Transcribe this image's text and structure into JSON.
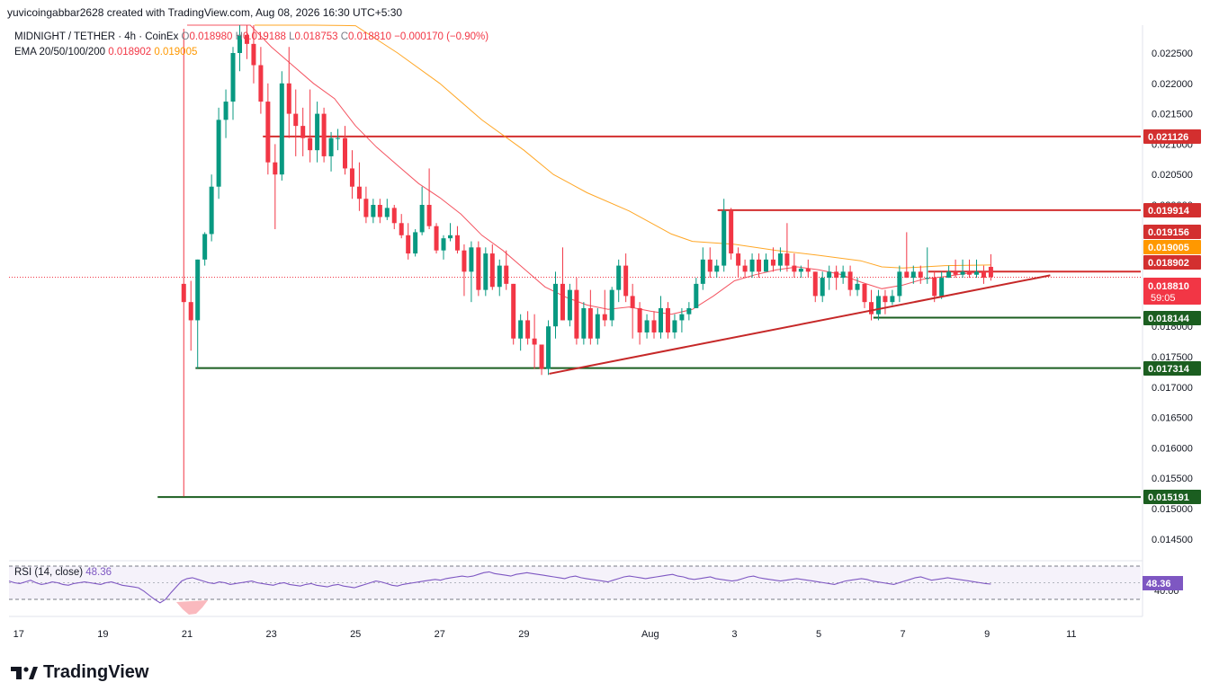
{
  "header": {
    "user": "yuvicoingabbar2628",
    "created_text": "created with TradingView.com, Aug 08, 2026 16:30 UTC+5:30"
  },
  "legend": {
    "symbol": "MIDNIGHT / TETHER · 4h · CoinEx",
    "ohlc": {
      "o_label": "O",
      "o": "0.018980",
      "h_label": "H",
      "h": "0.019188",
      "l_label": "L",
      "l": "0.018753",
      "c_label": "C",
      "c": "0.018810",
      "change": "−0.000170 (−0.90%)"
    },
    "ema_label": "EMA 20/50/100/200",
    "ema20": "0.018902",
    "ema50": "0.019005"
  },
  "rsi_legend": {
    "label": "RSI (14, close)",
    "value": "48.36"
  },
  "brand": {
    "name": "TradingView"
  },
  "colors": {
    "up": "#089981",
    "down": "#f23645",
    "ema20": "#f23645",
    "ema50": "#ff9800",
    "rsi": "#7e57c2",
    "support": "#1b5e20",
    "resistance": "#d32f2f",
    "trendline": "#c62828"
  },
  "chart_data": {
    "type": "candlestick",
    "timeframe": "4h",
    "price_axis": {
      "ticks": [
        "0.022500",
        "0.022000",
        "0.021500",
        "0.021000",
        "0.020500",
        "0.020000",
        "0.019500",
        "0.019000",
        "0.018500",
        "0.018000",
        "0.017500",
        "0.017000",
        "0.016500",
        "0.016000",
        "0.015500",
        "0.015000",
        "0.014500"
      ],
      "range": [
        0.0142,
        0.0234
      ]
    },
    "time_axis": {
      "ticks": [
        {
          "label": "17",
          "day": 17
        },
        {
          "label": "19",
          "day": 19
        },
        {
          "label": "21",
          "day": 21
        },
        {
          "label": "23",
          "day": 23
        },
        {
          "label": "25",
          "day": 25
        },
        {
          "label": "27",
          "day": 27
        },
        {
          "label": "29",
          "day": 29
        },
        {
          "label": "Aug",
          "day": 32
        },
        {
          "label": "3",
          "day": 34
        },
        {
          "label": "5",
          "day": 36
        },
        {
          "label": "7",
          "day": 38
        },
        {
          "label": "9",
          "day": 40
        },
        {
          "label": "11",
          "day": 42
        }
      ]
    },
    "price_labels": [
      {
        "value": "0.021126",
        "style": "resistance"
      },
      {
        "value": "0.019914",
        "style": "resistance"
      },
      {
        "value": "0.019156",
        "style": "resistance"
      },
      {
        "value": "0.019005",
        "style": "ema50"
      },
      {
        "value": "0.018902",
        "style": "resistance"
      },
      {
        "value": "0.018810",
        "style": "last",
        "countdown": "59:05"
      },
      {
        "value": "0.018144",
        "style": "support"
      },
      {
        "value": "0.017314",
        "style": "support"
      },
      {
        "value": "0.015191",
        "style": "support"
      }
    ],
    "horizontal_levels": [
      {
        "price": 0.021126,
        "from_day": 22.8,
        "kind": "resistance"
      },
      {
        "price": 0.019914,
        "from_day": 33.6,
        "kind": "resistance"
      },
      {
        "price": 0.018902,
        "from_day": 38.6,
        "kind": "resistance"
      },
      {
        "price": 0.018144,
        "from_day": 37.3,
        "kind": "support"
      },
      {
        "price": 0.017314,
        "from_day": 21.2,
        "kind": "support"
      },
      {
        "price": 0.015191,
        "from_day": 20.3,
        "kind": "support"
      }
    ],
    "trendline": {
      "from": {
        "day": 29.6,
        "price": 0.01722
      },
      "to": {
        "day": 41.5,
        "price": 0.01884
      }
    },
    "candles": [
      [
        20.92,
        0.0187,
        0.0229,
        0.0152,
        0.0184
      ],
      [
        21.09,
        0.0184,
        0.01875,
        0.0176,
        0.0181
      ],
      [
        21.25,
        0.0181,
        0.0191,
        0.01731,
        0.0191
      ],
      [
        21.42,
        0.0191,
        0.01955,
        0.019,
        0.01952
      ],
      [
        21.58,
        0.01952,
        0.0205,
        0.0194,
        0.0203
      ],
      [
        21.75,
        0.0203,
        0.0216,
        0.0201,
        0.0214
      ],
      [
        21.92,
        0.0214,
        0.0219,
        0.0211,
        0.0217
      ],
      [
        22.09,
        0.0217,
        0.0226,
        0.0214,
        0.0225
      ],
      [
        22.25,
        0.0225,
        0.0234,
        0.0222,
        0.0228
      ],
      [
        22.42,
        0.0228,
        0.0232,
        0.0224,
        0.02265
      ],
      [
        22.58,
        0.02265,
        0.0231,
        0.022,
        0.0223
      ],
      [
        22.75,
        0.0223,
        0.0226,
        0.0215,
        0.0217
      ],
      [
        22.92,
        0.0217,
        0.022,
        0.0205,
        0.0207
      ],
      [
        23.09,
        0.0207,
        0.021,
        0.0196,
        0.0205
      ],
      [
        23.25,
        0.0205,
        0.0222,
        0.0204,
        0.022
      ],
      [
        23.42,
        0.022,
        0.0226,
        0.0211,
        0.0215
      ],
      [
        23.58,
        0.0215,
        0.0219,
        0.0208,
        0.0213
      ],
      [
        23.75,
        0.0213,
        0.0216,
        0.0208,
        0.0211
      ],
      [
        23.92,
        0.0211,
        0.0219,
        0.0207,
        0.0209
      ],
      [
        24.09,
        0.0209,
        0.0217,
        0.0207,
        0.0215
      ],
      [
        24.25,
        0.0215,
        0.0216,
        0.0207,
        0.0208
      ],
      [
        24.42,
        0.0208,
        0.0212,
        0.02055,
        0.0211
      ],
      [
        24.58,
        0.0211,
        0.02125,
        0.0209,
        0.0211
      ],
      [
        24.75,
        0.0211,
        0.0213,
        0.0205,
        0.0206
      ],
      [
        24.92,
        0.0206,
        0.0209,
        0.0201,
        0.0203
      ],
      [
        25.09,
        0.0203,
        0.0207,
        0.0199,
        0.0201
      ],
      [
        25.25,
        0.0201,
        0.0203,
        0.0197,
        0.0198
      ],
      [
        25.42,
        0.0198,
        0.0201,
        0.0197,
        0.02
      ],
      [
        25.58,
        0.02,
        0.0201,
        0.0197,
        0.0198
      ],
      [
        25.75,
        0.0198,
        0.0201,
        0.01975,
        0.01995
      ],
      [
        25.92,
        0.01995,
        0.02,
        0.0196,
        0.0197
      ],
      [
        26.09,
        0.0197,
        0.01985,
        0.01945,
        0.0195
      ],
      [
        26.25,
        0.0195,
        0.0197,
        0.0191,
        0.0192
      ],
      [
        26.42,
        0.0192,
        0.0196,
        0.01915,
        0.01955
      ],
      [
        26.58,
        0.01955,
        0.0203,
        0.0195,
        0.02
      ],
      [
        26.75,
        0.02,
        0.0206,
        0.0196,
        0.01965
      ],
      [
        26.92,
        0.01965,
        0.0197,
        0.0192,
        0.01925
      ],
      [
        27.09,
        0.01925,
        0.0195,
        0.0191,
        0.01945
      ],
      [
        27.25,
        0.01945,
        0.0197,
        0.0194,
        0.0195
      ],
      [
        27.42,
        0.0195,
        0.01965,
        0.0192,
        0.01925
      ],
      [
        27.58,
        0.01925,
        0.01935,
        0.0185,
        0.0189
      ],
      [
        27.75,
        0.0189,
        0.0194,
        0.0184,
        0.0193
      ],
      [
        27.92,
        0.0193,
        0.0194,
        0.0185,
        0.0186
      ],
      [
        28.09,
        0.0186,
        0.0193,
        0.0185,
        0.0192
      ],
      [
        28.25,
        0.0192,
        0.01935,
        0.0186,
        0.01865
      ],
      [
        28.42,
        0.01865,
        0.0191,
        0.0185,
        0.019
      ],
      [
        28.58,
        0.019,
        0.01925,
        0.0186,
        0.0187
      ],
      [
        28.75,
        0.0187,
        0.0187,
        0.0177,
        0.0178
      ],
      [
        28.92,
        0.0178,
        0.0182,
        0.0176,
        0.0181
      ],
      [
        29.09,
        0.0181,
        0.01825,
        0.0177,
        0.0178
      ],
      [
        29.25,
        0.0178,
        0.0182,
        0.0173,
        0.0177
      ],
      [
        29.42,
        0.0177,
        0.0177,
        0.0172,
        0.0173
      ],
      [
        29.58,
        0.0173,
        0.0181,
        0.0172,
        0.018
      ],
      [
        29.75,
        0.018,
        0.0189,
        0.0178,
        0.0187
      ],
      [
        29.92,
        0.0187,
        0.0193,
        0.0181,
        0.0181
      ],
      [
        30.09,
        0.0181,
        0.0187,
        0.018,
        0.0186
      ],
      [
        30.25,
        0.0186,
        0.0188,
        0.0177,
        0.0178
      ],
      [
        30.42,
        0.0178,
        0.0184,
        0.0177,
        0.0183
      ],
      [
        30.58,
        0.0183,
        0.0186,
        0.0177,
        0.0178
      ],
      [
        30.75,
        0.0178,
        0.0183,
        0.0177,
        0.0182
      ],
      [
        30.92,
        0.0182,
        0.0186,
        0.018,
        0.0181
      ],
      [
        31.09,
        0.0181,
        0.01865,
        0.018,
        0.0186
      ],
      [
        31.25,
        0.0186,
        0.0191,
        0.0184,
        0.019
      ],
      [
        31.42,
        0.019,
        0.0192,
        0.0184,
        0.0185
      ],
      [
        31.58,
        0.0185,
        0.0187,
        0.0178,
        0.0183
      ],
      [
        31.75,
        0.0183,
        0.0184,
        0.0177,
        0.0179
      ],
      [
        31.92,
        0.0179,
        0.0182,
        0.0178,
        0.0181
      ],
      [
        32.09,
        0.0181,
        0.01825,
        0.0178,
        0.0179
      ],
      [
        32.25,
        0.0179,
        0.0185,
        0.0178,
        0.0183
      ],
      [
        32.42,
        0.0183,
        0.0184,
        0.0178,
        0.0179
      ],
      [
        32.58,
        0.0179,
        0.0182,
        0.0178,
        0.0181
      ],
      [
        32.75,
        0.0181,
        0.0183,
        0.0179,
        0.0182
      ],
      [
        32.92,
        0.0182,
        0.0184,
        0.0181,
        0.0183
      ],
      [
        33.09,
        0.0183,
        0.0188,
        0.0183,
        0.0187
      ],
      [
        33.25,
        0.0187,
        0.0193,
        0.0186,
        0.0191
      ],
      [
        33.42,
        0.0191,
        0.0193,
        0.0188,
        0.0189
      ],
      [
        33.58,
        0.0189,
        0.0191,
        0.0188,
        0.019
      ],
      [
        33.75,
        0.019,
        0.0201,
        0.0189,
        0.0199
      ],
      [
        33.92,
        0.0199,
        0.01995,
        0.0191,
        0.0192
      ],
      [
        34.09,
        0.0192,
        0.0193,
        0.0188,
        0.019
      ],
      [
        34.25,
        0.019,
        0.0191,
        0.0188,
        0.0189
      ],
      [
        34.42,
        0.0189,
        0.0192,
        0.0188,
        0.0191
      ],
      [
        34.58,
        0.0191,
        0.0192,
        0.0188,
        0.0189
      ],
      [
        34.75,
        0.0189,
        0.0192,
        0.0189,
        0.0191
      ],
      [
        34.92,
        0.0191,
        0.0193,
        0.0189,
        0.019
      ],
      [
        35.09,
        0.019,
        0.0193,
        0.0189,
        0.0192
      ],
      [
        35.25,
        0.0192,
        0.0197,
        0.0189,
        0.019
      ],
      [
        35.42,
        0.019,
        0.0192,
        0.0188,
        0.0189
      ],
      [
        35.58,
        0.0189,
        0.019,
        0.0188,
        0.01895
      ],
      [
        35.75,
        0.01895,
        0.0191,
        0.0188,
        0.0189
      ],
      [
        35.92,
        0.0189,
        0.0189,
        0.0184,
        0.0185
      ],
      [
        36.09,
        0.0185,
        0.0189,
        0.0184,
        0.0188
      ],
      [
        36.25,
        0.0188,
        0.019,
        0.0186,
        0.0189
      ],
      [
        36.42,
        0.0189,
        0.019,
        0.0186,
        0.0188
      ],
      [
        36.58,
        0.0188,
        0.019,
        0.0187,
        0.0189
      ],
      [
        36.75,
        0.0189,
        0.019,
        0.0185,
        0.0186
      ],
      [
        36.92,
        0.0186,
        0.0188,
        0.0185,
        0.0187
      ],
      [
        37.09,
        0.0187,
        0.0187,
        0.0183,
        0.0184
      ],
      [
        37.25,
        0.0184,
        0.0186,
        0.0181,
        0.0182
      ],
      [
        37.42,
        0.0182,
        0.0186,
        0.0181,
        0.0185
      ],
      [
        37.58,
        0.0185,
        0.0186,
        0.0182,
        0.0184
      ],
      [
        37.75,
        0.0184,
        0.0186,
        0.01835,
        0.0185
      ],
      [
        37.92,
        0.0185,
        0.019,
        0.0184,
        0.0189
      ],
      [
        38.09,
        0.0189,
        0.01955,
        0.0188,
        0.0188
      ],
      [
        38.25,
        0.0188,
        0.019,
        0.0187,
        0.0189
      ],
      [
        38.42,
        0.0189,
        0.019,
        0.0187,
        0.0188
      ],
      [
        38.58,
        0.0188,
        0.0193,
        0.0187,
        0.0188
      ],
      [
        38.75,
        0.0188,
        0.0189,
        0.0184,
        0.0185
      ],
      [
        38.92,
        0.0185,
        0.0189,
        0.01845,
        0.0188
      ],
      [
        39.09,
        0.0188,
        0.019,
        0.0188,
        0.0189
      ],
      [
        39.25,
        0.0189,
        0.0191,
        0.0188,
        0.01885
      ],
      [
        39.42,
        0.01885,
        0.0191,
        0.0188,
        0.0189
      ],
      [
        39.58,
        0.0189,
        0.0191,
        0.0188,
        0.01885
      ],
      [
        39.75,
        0.01885,
        0.0191,
        0.0188,
        0.0189
      ],
      [
        39.92,
        0.0189,
        0.019,
        0.0187,
        0.0188
      ],
      [
        40.09,
        0.01898,
        0.019188,
        0.018753,
        0.01881
      ]
    ],
    "ema20": [
      [
        21.0,
        0.0231
      ],
      [
        21.5,
        0.0238
      ],
      [
        22.0,
        0.0238
      ],
      [
        22.5,
        0.023
      ],
      [
        23.0,
        0.0226
      ],
      [
        23.5,
        0.0223
      ],
      [
        24.0,
        0.022
      ],
      [
        24.5,
        0.02175
      ],
      [
        25.0,
        0.0213
      ],
      [
        25.5,
        0.02095
      ],
      [
        26.0,
        0.02065
      ],
      [
        26.5,
        0.02035
      ],
      [
        27.0,
        0.02012
      ],
      [
        27.5,
        0.01985
      ],
      [
        28.0,
        0.0195
      ],
      [
        28.5,
        0.01925
      ],
      [
        29.0,
        0.01895
      ],
      [
        29.5,
        0.01865
      ],
      [
        30.0,
        0.01848
      ],
      [
        30.5,
        0.01835
      ],
      [
        31.0,
        0.01828
      ],
      [
        31.5,
        0.01832
      ],
      [
        32.0,
        0.01825
      ],
      [
        32.5,
        0.0182
      ],
      [
        33.0,
        0.01828
      ],
      [
        33.5,
        0.0185
      ],
      [
        34.0,
        0.01875
      ],
      [
        34.5,
        0.01885
      ],
      [
        35.0,
        0.01893
      ],
      [
        35.5,
        0.01898
      ],
      [
        36.0,
        0.01893
      ],
      [
        36.5,
        0.01886
      ],
      [
        37.0,
        0.01873
      ],
      [
        37.5,
        0.01862
      ],
      [
        38.0,
        0.01868
      ],
      [
        38.5,
        0.01878
      ],
      [
        39.0,
        0.01882
      ],
      [
        39.5,
        0.01887
      ],
      [
        40.09,
        0.0189
      ]
    ],
    "ema50": [
      [
        22.6,
        0.0236
      ],
      [
        23.0,
        0.0235
      ],
      [
        24.0,
        0.0233
      ],
      [
        25.0,
        0.02295
      ],
      [
        26.0,
        0.0225
      ],
      [
        27.0,
        0.022
      ],
      [
        28.0,
        0.0214
      ],
      [
        29.0,
        0.0209
      ],
      [
        29.7,
        0.0205
      ],
      [
        30.5,
        0.0202
      ],
      [
        31.5,
        0.0199
      ],
      [
        32.5,
        0.01952
      ],
      [
        33.0,
        0.0194
      ],
      [
        34.0,
        0.01935
      ],
      [
        35.0,
        0.01925
      ],
      [
        36.0,
        0.01917
      ],
      [
        37.0,
        0.01908
      ],
      [
        37.5,
        0.01898
      ],
      [
        38.0,
        0.01896
      ],
      [
        39.0,
        0.019
      ],
      [
        40.09,
        0.01901
      ]
    ],
    "rsi": {
      "current": 48.36,
      "upper": 70,
      "mid": 50,
      "lower": 30
    }
  }
}
